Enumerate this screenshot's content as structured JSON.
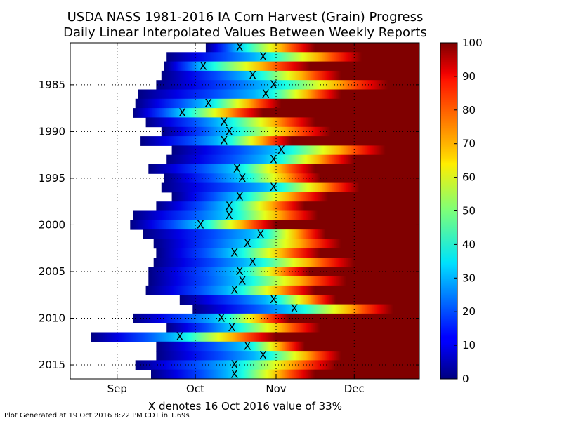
{
  "chart_data": {
    "type": "heatmap",
    "title": "USDA NASS 1981-2016 IA Corn Harvest (Grain) Progress",
    "subtitle": "Daily Linear Interpolated Values Between Weekly Reports",
    "xlabel": "X denotes 16 Oct 2016 value of 33%",
    "footer": "Plot Generated at 19 Oct 2016 8:22 PM CDT in 1.69s",
    "x_ticks": [
      "Sep",
      "Oct",
      "Nov",
      "Dec"
    ],
    "y_ticks": [
      "1985",
      "1990",
      "1995",
      "2000",
      "2005",
      "2010",
      "2015"
    ],
    "colorbar_ticks": [
      "0",
      "10",
      "20",
      "30",
      "40",
      "50",
      "60",
      "70",
      "80",
      "90",
      "100"
    ],
    "colorbar_range": [
      0,
      100
    ],
    "colormap": "jet",
    "x_range_day_of_year": [
      226,
      360
    ],
    "y_range": [
      1980.5,
      2016.5
    ],
    "marker_label": "X",
    "series": [
      {
        "year": 1981,
        "start_doy": 278,
        "end_doy": 360,
        "x_doy": 291,
        "p100_doy": 320
      },
      {
        "year": 1982,
        "start_doy": 263,
        "end_doy": 360,
        "x_doy": 300,
        "p100_doy": 338
      },
      {
        "year": 1983,
        "start_doy": 262,
        "end_doy": 360,
        "x_doy": 277,
        "p100_doy": 318
      },
      {
        "year": 1984,
        "start_doy": 261,
        "end_doy": 360,
        "x_doy": 296,
        "p100_doy": 330
      },
      {
        "year": 1985,
        "start_doy": 259,
        "end_doy": 360,
        "x_doy": 304,
        "p100_doy": 348
      },
      {
        "year": 1986,
        "start_doy": 252,
        "end_doy": 360,
        "x_doy": 301,
        "p100_doy": 330
      },
      {
        "year": 1987,
        "start_doy": 251,
        "end_doy": 360,
        "x_doy": 279,
        "p100_doy": 307
      },
      {
        "year": 1988,
        "start_doy": 250,
        "end_doy": 360,
        "x_doy": 269,
        "p100_doy": 300
      },
      {
        "year": 1989,
        "start_doy": 255,
        "end_doy": 360,
        "x_doy": 285,
        "p100_doy": 320
      },
      {
        "year": 1990,
        "start_doy": 261,
        "end_doy": 360,
        "x_doy": 287,
        "p100_doy": 326
      },
      {
        "year": 1991,
        "start_doy": 253,
        "end_doy": 360,
        "x_doy": 285,
        "p100_doy": 311
      },
      {
        "year": 1992,
        "start_doy": 265,
        "end_doy": 360,
        "x_doy": 307,
        "p100_doy": 347
      },
      {
        "year": 1993,
        "start_doy": 263,
        "end_doy": 360,
        "x_doy": 304,
        "p100_doy": 335
      },
      {
        "year": 1994,
        "start_doy": 256,
        "end_doy": 360,
        "x_doy": 290,
        "p100_doy": 320
      },
      {
        "year": 1995,
        "start_doy": 262,
        "end_doy": 360,
        "x_doy": 292,
        "p100_doy": 322
      },
      {
        "year": 1996,
        "start_doy": 261,
        "end_doy": 360,
        "x_doy": 304,
        "p100_doy": 337
      },
      {
        "year": 1997,
        "start_doy": 265,
        "end_doy": 360,
        "x_doy": 291,
        "p100_doy": 325
      },
      {
        "year": 1998,
        "start_doy": 259,
        "end_doy": 360,
        "x_doy": 287,
        "p100_doy": 316
      },
      {
        "year": 1999,
        "start_doy": 250,
        "end_doy": 360,
        "x_doy": 287,
        "p100_doy": 321
      },
      {
        "year": 2000,
        "start_doy": 249,
        "end_doy": 360,
        "x_doy": 276,
        "p100_doy": 305
      },
      {
        "year": 2001,
        "start_doy": 254,
        "end_doy": 360,
        "x_doy": 299,
        "p100_doy": 324
      },
      {
        "year": 2002,
        "start_doy": 258,
        "end_doy": 360,
        "x_doy": 294,
        "p100_doy": 330
      },
      {
        "year": 2003,
        "start_doy": 259,
        "end_doy": 360,
        "x_doy": 289,
        "p100_doy": 322
      },
      {
        "year": 2004,
        "start_doy": 258,
        "end_doy": 360,
        "x_doy": 296,
        "p100_doy": 335
      },
      {
        "year": 2005,
        "start_doy": 256,
        "end_doy": 360,
        "x_doy": 291,
        "p100_doy": 318
      },
      {
        "year": 2006,
        "start_doy": 256,
        "end_doy": 360,
        "x_doy": 292,
        "p100_doy": 332
      },
      {
        "year": 2007,
        "start_doy": 255,
        "end_doy": 360,
        "x_doy": 289,
        "p100_doy": 320
      },
      {
        "year": 2008,
        "start_doy": 268,
        "end_doy": 360,
        "x_doy": 304,
        "p100_doy": 328
      },
      {
        "year": 2009,
        "start_doy": 273,
        "end_doy": 360,
        "x_doy": 312,
        "p100_doy": 350
      },
      {
        "year": 2010,
        "start_doy": 250,
        "end_doy": 360,
        "x_doy": 284,
        "p100_doy": 310
      },
      {
        "year": 2011,
        "start_doy": 263,
        "end_doy": 360,
        "x_doy": 288,
        "p100_doy": 322
      },
      {
        "year": 2012,
        "start_doy": 234,
        "end_doy": 360,
        "x_doy": 268,
        "p100_doy": 305
      },
      {
        "year": 2013,
        "start_doy": 259,
        "end_doy": 360,
        "x_doy": 294,
        "p100_doy": 316
      },
      {
        "year": 2014,
        "start_doy": 259,
        "end_doy": 360,
        "x_doy": 300,
        "p100_doy": 330
      },
      {
        "year": 2015,
        "start_doy": 251,
        "end_doy": 360,
        "x_doy": 289,
        "p100_doy": 328
      },
      {
        "year": 2016,
        "start_doy": 257,
        "end_doy": 360,
        "x_doy": 289,
        "p100_doy": 320
      }
    ]
  }
}
